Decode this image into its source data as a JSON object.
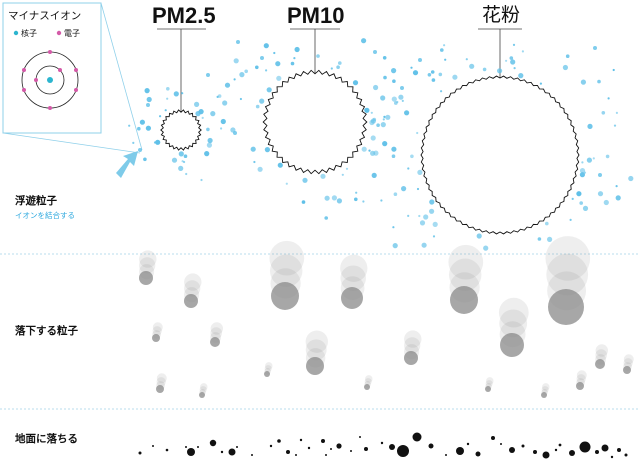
{
  "inset": {
    "title": "マイナスイオン",
    "legend": [
      {
        "label": "核子",
        "color": "#2cb5cf"
      },
      {
        "label": "電子",
        "color": "#d45aa8"
      }
    ]
  },
  "particles": [
    {
      "key": "pm25",
      "label": "PM2.5"
    },
    {
      "key": "pm10",
      "label": "PM10"
    },
    {
      "key": "pollen",
      "label": "花粉"
    }
  ],
  "rows": {
    "floating": {
      "label": "浮遊粒子",
      "sublabel": "イオンを結合する"
    },
    "falling": {
      "label": "落下する粒子"
    },
    "ground": {
      "label": "地面に落ちる"
    }
  },
  "colors": {
    "ion_dot": "#5fc0e8",
    "arrow": "#7ecbe9",
    "falling_particle": "#8a8a8a",
    "ground_particle": "#111111",
    "divider": "#b9dcec"
  }
}
